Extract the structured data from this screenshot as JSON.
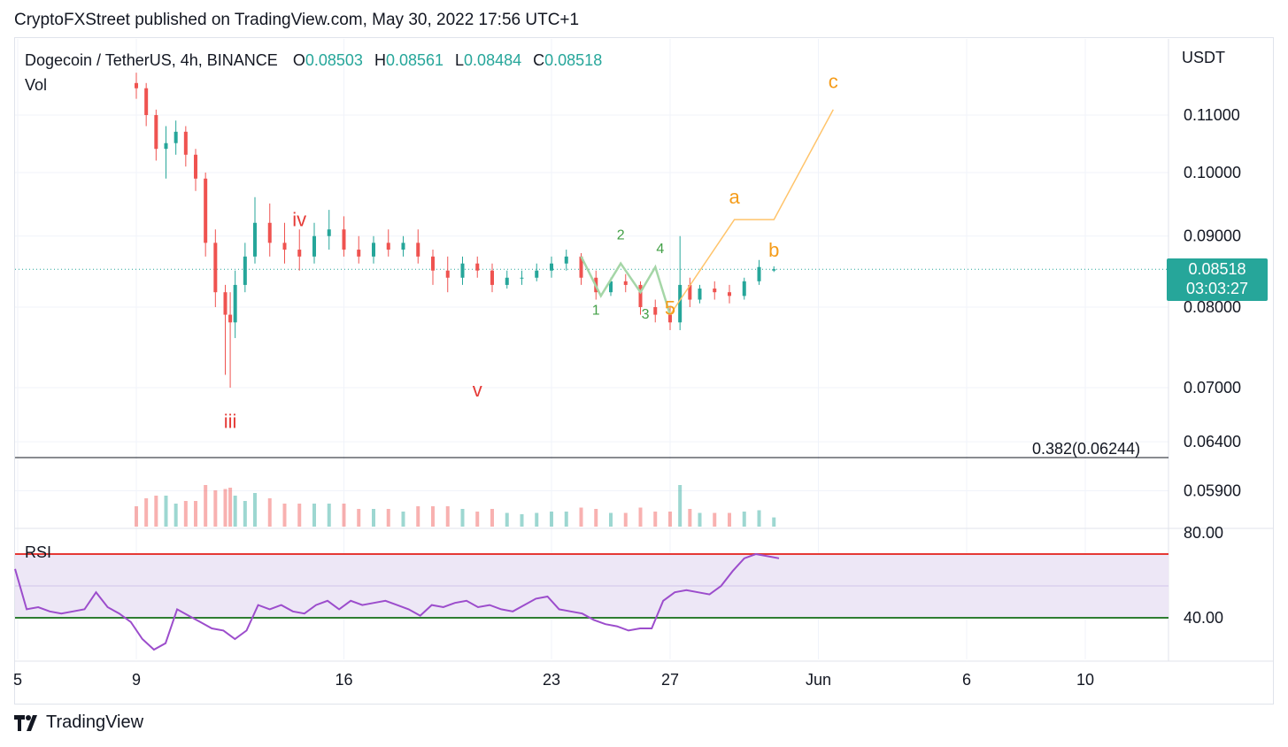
{
  "header": {
    "text": "CryptoFXStreet published on TradingView.com, May 30, 2022 17:56 UTC+1"
  },
  "legend": {
    "symbol": "Dogecoin / TetherUS, 4h, BINANCE",
    "open_label": "O",
    "open": "0.08503",
    "high_label": "H",
    "high": "0.08561",
    "low_label": "L",
    "low": "0.08484",
    "close_label": "C",
    "close": "0.08518"
  },
  "panes": {
    "volume_label": "Vol",
    "rsi_label": "RSI"
  },
  "price_axis": {
    "unit": "USDT"
  },
  "last_price": {
    "value": "0.08518",
    "countdown": "03:03:27"
  },
  "fib": {
    "label": "0.382(0.06244)"
  },
  "brand": {
    "name": "TradingView"
  },
  "colors": {
    "up": "#26a69a",
    "down": "#ef5350",
    "rsi_line": "#9c4dcc",
    "rsi_band": "#ede7f6",
    "wave_red": "#e53935",
    "wave_orange": "#f59c1a",
    "wave_green": "#43a047",
    "projection": "#ffc46b",
    "subwave_line": "#a5d6a7"
  },
  "chart_data": {
    "type": "candlestick",
    "title": "Dogecoin / TetherUS, 4h, BINANCE",
    "ylabel": "USDT",
    "scale": "log",
    "y_ticks": [
      "0.11000",
      "0.10000",
      "0.09000",
      "0.08000",
      "0.07000",
      "0.06400",
      "0.05900"
    ],
    "y_tick_values": [
      0.11,
      0.1,
      0.09,
      0.08,
      0.07,
      0.064,
      0.059
    ],
    "x_ticks": [
      "5",
      "9",
      "16",
      "23",
      "27",
      "Jun",
      "6",
      "10"
    ],
    "x_tick_values": [
      "2022-05-05",
      "2022-05-09",
      "2022-05-16",
      "2022-05-23",
      "2022-05-27",
      "2022-06-01",
      "2022-06-06",
      "2022-06-10"
    ],
    "fib_level": 0.06244,
    "last_price": 0.08518,
    "series_ohlc": [
      [
        "2022-05-09 00:00",
        0.116,
        0.118,
        0.113,
        0.115
      ],
      [
        "2022-05-09 08:00",
        0.115,
        0.116,
        0.108,
        0.11
      ],
      [
        "2022-05-09 16:00",
        0.11,
        0.111,
        0.102,
        0.104
      ],
      [
        "2022-05-10 00:00",
        0.104,
        0.108,
        0.099,
        0.105
      ],
      [
        "2022-05-10 08:00",
        0.105,
        0.109,
        0.103,
        0.107
      ],
      [
        "2022-05-10 16:00",
        0.107,
        0.108,
        0.101,
        0.103
      ],
      [
        "2022-05-11 00:00",
        0.103,
        0.104,
        0.097,
        0.099
      ],
      [
        "2022-05-11 08:00",
        0.099,
        0.1,
        0.087,
        0.089
      ],
      [
        "2022-05-11 16:00",
        0.089,
        0.091,
        0.08,
        0.082
      ],
      [
        "2022-05-12 00:00",
        0.082,
        0.083,
        0.0715,
        0.079
      ],
      [
        "2022-05-12 04:00",
        0.079,
        0.082,
        0.07,
        0.078
      ],
      [
        "2022-05-12 08:00",
        0.078,
        0.085,
        0.076,
        0.083
      ],
      [
        "2022-05-12 16:00",
        0.083,
        0.089,
        0.082,
        0.087
      ],
      [
        "2022-05-13 00:00",
        0.087,
        0.096,
        0.086,
        0.092
      ],
      [
        "2022-05-13 12:00",
        0.092,
        0.095,
        0.087,
        0.089
      ],
      [
        "2022-05-14 00:00",
        0.089,
        0.092,
        0.086,
        0.088
      ],
      [
        "2022-05-14 12:00",
        0.088,
        0.091,
        0.085,
        0.087
      ],
      [
        "2022-05-15 00:00",
        0.087,
        0.092,
        0.086,
        0.09
      ],
      [
        "2022-05-15 12:00",
        0.09,
        0.094,
        0.088,
        0.091
      ],
      [
        "2022-05-16 00:00",
        0.091,
        0.093,
        0.087,
        0.088
      ],
      [
        "2022-05-16 12:00",
        0.088,
        0.09,
        0.086,
        0.087
      ],
      [
        "2022-05-17 00:00",
        0.087,
        0.09,
        0.086,
        0.089
      ],
      [
        "2022-05-17 12:00",
        0.089,
        0.091,
        0.087,
        0.088
      ],
      [
        "2022-05-18 00:00",
        0.088,
        0.09,
        0.087,
        0.089
      ],
      [
        "2022-05-18 12:00",
        0.089,
        0.091,
        0.086,
        0.087
      ],
      [
        "2022-05-19 00:00",
        0.087,
        0.088,
        0.083,
        0.085
      ],
      [
        "2022-05-19 12:00",
        0.085,
        0.087,
        0.082,
        0.084
      ],
      [
        "2022-05-20 00:00",
        0.084,
        0.087,
        0.083,
        0.086
      ],
      [
        "2022-05-20 12:00",
        0.086,
        0.087,
        0.084,
        0.085
      ],
      [
        "2022-05-21 00:00",
        0.085,
        0.086,
        0.082,
        0.083
      ],
      [
        "2022-05-21 12:00",
        0.083,
        0.085,
        0.0825,
        0.084
      ],
      [
        "2022-05-22 00:00",
        0.084,
        0.085,
        0.083,
        0.084
      ],
      [
        "2022-05-22 12:00",
        0.084,
        0.086,
        0.0835,
        0.085
      ],
      [
        "2022-05-23 00:00",
        0.085,
        0.087,
        0.084,
        0.086
      ],
      [
        "2022-05-23 12:00",
        0.086,
        0.088,
        0.085,
        0.087
      ],
      [
        "2022-05-24 00:00",
        0.087,
        0.0875,
        0.083,
        0.084
      ],
      [
        "2022-05-24 12:00",
        0.084,
        0.085,
        0.081,
        0.082
      ],
      [
        "2022-05-25 00:00",
        0.082,
        0.084,
        0.0815,
        0.0835
      ],
      [
        "2022-05-25 12:00",
        0.0835,
        0.0845,
        0.082,
        0.083
      ],
      [
        "2022-05-26 00:00",
        0.083,
        0.0835,
        0.079,
        0.08
      ],
      [
        "2022-05-26 12:00",
        0.08,
        0.081,
        0.078,
        0.079
      ],
      [
        "2022-05-27 00:00",
        0.079,
        0.08,
        0.077,
        0.078
      ],
      [
        "2022-05-27 08:00",
        0.078,
        0.09,
        0.077,
        0.083
      ],
      [
        "2022-05-27 16:00",
        0.083,
        0.084,
        0.08,
        0.081
      ],
      [
        "2022-05-28 00:00",
        0.081,
        0.083,
        0.0805,
        0.0825
      ],
      [
        "2022-05-28 12:00",
        0.0825,
        0.0835,
        0.081,
        0.082
      ],
      [
        "2022-05-29 00:00",
        0.082,
        0.083,
        0.0805,
        0.0815
      ],
      [
        "2022-05-29 12:00",
        0.0815,
        0.084,
        0.081,
        0.0835
      ],
      [
        "2022-05-30 00:00",
        0.0835,
        0.0865,
        0.083,
        0.0855
      ],
      [
        "2022-05-30 12:00",
        0.085,
        0.0856,
        0.0848,
        0.0852
      ]
    ],
    "rsi": {
      "levels": [
        70,
        40
      ],
      "axis_ticks": [
        "80.00",
        "40.00"
      ],
      "values": [
        63,
        44,
        45,
        43,
        42,
        43,
        44,
        52,
        45,
        42,
        38,
        30,
        25,
        28,
        44,
        41,
        38,
        35,
        34,
        30,
        34,
        46,
        44,
        46,
        43,
        42,
        46,
        48,
        44,
        48,
        46,
        47,
        48,
        46,
        44,
        41,
        46,
        45,
        47,
        48,
        45,
        46,
        44,
        43,
        46,
        49,
        50,
        44,
        43,
        42,
        39,
        37,
        36,
        34,
        35,
        35,
        48,
        52,
        53,
        52,
        51,
        55,
        62,
        68,
        70,
        69,
        68
      ]
    },
    "annotations": {
      "wave_labels": [
        {
          "text": "iv",
          "date": "2022-05-14 12:00",
          "price": 0.0915,
          "color": "red"
        },
        {
          "text": "v",
          "date": "2022-05-20 12:00",
          "price": 0.069,
          "color": "red"
        },
        {
          "text": "iii",
          "date": "2022-05-12 04:00",
          "price": 0.0655,
          "color": "red"
        },
        {
          "text": "1",
          "date": "2022-05-24 12:00",
          "price": 0.079,
          "color": "green"
        },
        {
          "text": "2",
          "date": "2022-05-25 08:00",
          "price": 0.0895,
          "color": "green"
        },
        {
          "text": "3",
          "date": "2022-05-26 04:00",
          "price": 0.0785,
          "color": "green"
        },
        {
          "text": "4",
          "date": "2022-05-26 16:00",
          "price": 0.0875,
          "color": "green"
        },
        {
          "text": "5",
          "date": "2022-05-27 00:00",
          "price": 0.079,
          "color": "orange"
        },
        {
          "text": "a",
          "date": "2022-05-29 04:00",
          "price": 0.095,
          "color": "orange"
        },
        {
          "text": "b",
          "date": "2022-05-30 12:00",
          "price": 0.087,
          "color": "orange"
        },
        {
          "text": "c",
          "date": "2022-06-01 12:00",
          "price": 0.115,
          "color": "orange"
        }
      ],
      "projection_path": [
        [
          "2022-05-27 00:00",
          0.079
        ],
        [
          "2022-05-29 04:00",
          0.0925
        ],
        [
          "2022-05-30 12:00",
          0.0925
        ],
        [
          "2022-06-01 12:00",
          0.111
        ]
      ],
      "subwave_path": [
        [
          "2022-05-24 00:00",
          0.087
        ],
        [
          "2022-05-24 16:00",
          0.0815
        ],
        [
          "2022-05-25 08:00",
          0.086
        ],
        [
          "2022-05-26 00:00",
          0.082
        ],
        [
          "2022-05-26 12:00",
          0.0855
        ],
        [
          "2022-05-27 00:00",
          0.079
        ]
      ]
    }
  }
}
